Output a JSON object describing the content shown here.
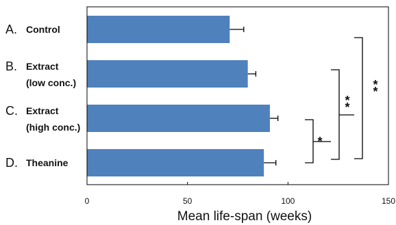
{
  "chart_data": {
    "type": "bar",
    "orientation": "horizontal",
    "categories": [
      {
        "letter": "A.",
        "lines": [
          "Control"
        ]
      },
      {
        "letter": "B.",
        "lines": [
          "Extract",
          "(low conc.)"
        ]
      },
      {
        "letter": "C.",
        "lines": [
          "Extract",
          "(high conc.)"
        ]
      },
      {
        "letter": "D.",
        "lines": [
          "Theanine"
        ]
      }
    ],
    "values": [
      71,
      80,
      91,
      88
    ],
    "errors": [
      7,
      4,
      4,
      6
    ],
    "xlabel": "Mean life-span (weeks)",
    "xlim": [
      0,
      150
    ],
    "xticks": [
      "0",
      "50",
      "100",
      "150"
    ],
    "bar_color": "#4f81bd",
    "grid": false,
    "significance": [
      {
        "between": [
          "C",
          "D"
        ],
        "label": "*"
      },
      {
        "between": [
          "B",
          "D"
        ],
        "label": "**"
      },
      {
        "between": [
          "A",
          "D"
        ],
        "label": "**"
      }
    ]
  }
}
